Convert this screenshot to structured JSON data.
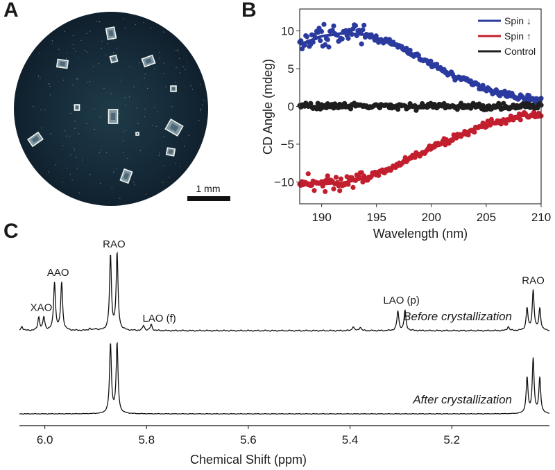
{
  "panels": {
    "a": {
      "letter": "A",
      "scale_bar_label": "1 mm",
      "description": "Micrograph of crystals in a circular well"
    },
    "b": {
      "letter": "B"
    },
    "c": {
      "letter": "C"
    }
  },
  "colors": {
    "spin_down": "#2b3a9e",
    "spin_up": "#c21f2e",
    "control": "#1e1e1e",
    "well": "#142433"
  },
  "chart_data": [
    {
      "id": "cd",
      "type": "scatter",
      "title": "",
      "xlabel": "Wavelength (nm)",
      "ylabel": "CD Angle (mdeg)",
      "xlim": [
        188,
        210
      ],
      "ylim": [
        -12.9,
        12.9
      ],
      "xticks": [
        190,
        195,
        200,
        205,
        210
      ],
      "yticks": [
        10,
        5,
        0,
        -5,
        -10
      ],
      "ytick_labels": [
        "10",
        "5",
        "0",
        "−5",
        "−10"
      ],
      "legend_position": "top-right",
      "grid": false,
      "series": [
        {
          "name": "Spin ↓",
          "color_key": "spin_down",
          "fit": {
            "x": [
              188,
              190,
              192,
              194,
              196,
              198,
              200,
              202,
              204,
              206,
              208,
              210
            ],
            "y": [
              8.2,
              9.3,
              9.7,
              9.5,
              8.6,
              7.2,
              5.6,
              4.1,
              2.9,
              1.9,
              1.2,
              0.8
            ]
          }
        },
        {
          "name": "Spin ↑",
          "color_key": "spin_up",
          "fit": {
            "x": [
              188,
              190,
              192,
              194,
              196,
              198,
              200,
              202,
              204,
              206,
              208,
              210
            ],
            "y": [
              -10.0,
              -10.3,
              -10.1,
              -9.5,
              -8.4,
              -7.0,
              -5.5,
              -4.2,
              -3.0,
              -2.0,
              -1.3,
              -1.0
            ]
          }
        },
        {
          "name": "Control",
          "color_key": "control",
          "fit": {
            "x": [
              188,
              210
            ],
            "y": [
              0,
              0
            ]
          }
        }
      ],
      "noise": {
        "spin_down_low_wl": 1.0,
        "spin_down_high_wl": 0.35,
        "spin_up_low_wl": 0.8,
        "spin_up_high_wl": 0.35,
        "control": 0.35
      },
      "points_per_series": 200
    },
    {
      "id": "nmr",
      "type": "line",
      "title": "",
      "xlabel": "Chemical Shift (ppm)",
      "ylabel": "",
      "xlim": [
        6.05,
        5.008
      ],
      "xticks": [
        6.0,
        5.8,
        5.6,
        5.4,
        5.2
      ],
      "xtick_labels": [
        "6.0",
        "5.8",
        "5.6",
        "5.4",
        "5.2"
      ],
      "grid": false,
      "series": [
        {
          "name": "Before crystallization",
          "peaks": [
            {
              "ppm": 6.045,
              "height": 0.08
            },
            {
              "ppm": 6.012,
              "height": 0.26
            },
            {
              "ppm": 6.002,
              "height": 0.26
            },
            {
              "ppm": 5.981,
              "height": 0.96
            },
            {
              "ppm": 5.967,
              "height": 0.96
            },
            {
              "ppm": 5.912,
              "height": 0.04
            },
            {
              "ppm": 5.9,
              "height": 0.04
            },
            {
              "ppm": 5.871,
              "height": 1.49
            },
            {
              "ppm": 5.858,
              "height": 1.53
            },
            {
              "ppm": 5.806,
              "height": 0.1
            },
            {
              "ppm": 5.791,
              "height": 0.12
            },
            {
              "ppm": 5.306,
              "height": 0.39
            },
            {
              "ppm": 5.292,
              "height": 0.4
            },
            {
              "ppm": 5.394,
              "height": 0.08
            },
            {
              "ppm": 5.38,
              "height": 0.07
            },
            {
              "ppm": 5.089,
              "height": 0.08
            },
            {
              "ppm": 5.052,
              "height": 0.44
            },
            {
              "ppm": 5.04,
              "height": 0.8
            },
            {
              "ppm": 5.027,
              "height": 0.44
            }
          ],
          "annotations": [
            {
              "text": "XAO",
              "ppm": 6.007
            },
            {
              "text": "AAO",
              "ppm": 5.974
            },
            {
              "text": "RAO",
              "ppm": 5.864
            },
            {
              "text": "LAO (f)",
              "ppm": 5.775
            },
            {
              "text": "LAO (p)",
              "ppm": 5.299
            },
            {
              "text": "RAO",
              "ppm": 5.04
            }
          ]
        },
        {
          "name": "After crystallization",
          "peaks": [
            {
              "ppm": 5.871,
              "height": 1.39
            },
            {
              "ppm": 5.858,
              "height": 1.4
            },
            {
              "ppm": 5.052,
              "height": 0.71
            },
            {
              "ppm": 5.04,
              "height": 1.09
            },
            {
              "ppm": 5.027,
              "height": 0.71
            }
          ],
          "annotations": []
        }
      ]
    }
  ]
}
